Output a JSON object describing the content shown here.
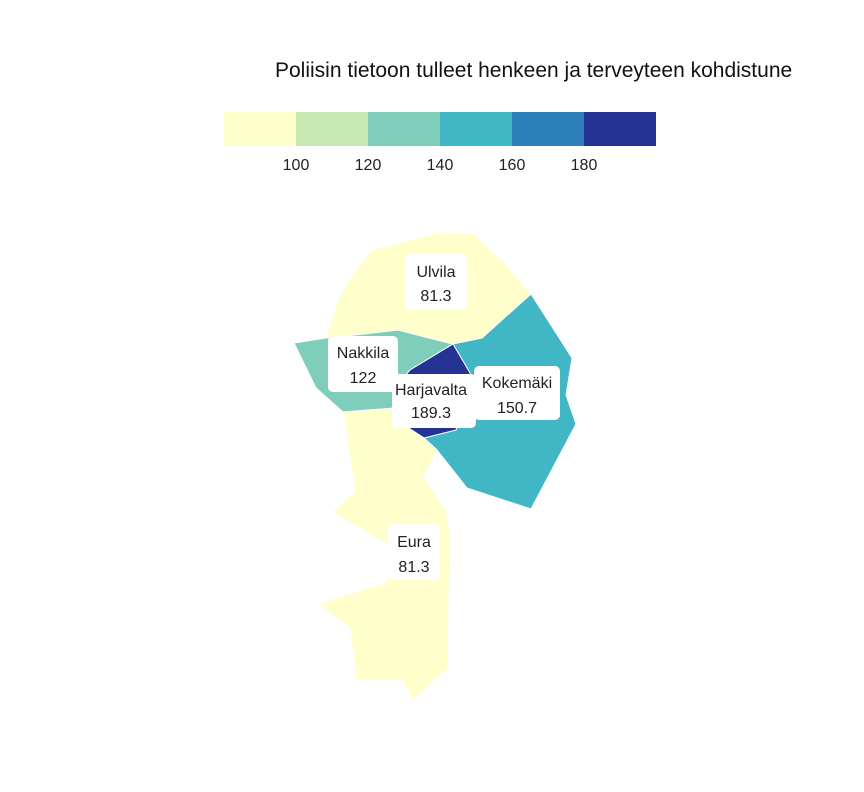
{
  "title": "Poliisin tietoon tulleet henkeen ja terveyteen kohdistune",
  "legend": {
    "ticks": [
      "100",
      "120",
      "140",
      "160",
      "180"
    ],
    "colors": [
      "#ffffcc",
      "#c7e9b4",
      "#7fcdbb",
      "#41b6c4",
      "#2c7fb8",
      "#253494"
    ]
  },
  "regions": [
    {
      "name": "Ulvila",
      "value": "81.3",
      "color": "#ffffcc"
    },
    {
      "name": "Nakkila",
      "value": "122",
      "color": "#7fcdbb"
    },
    {
      "name": "Harjavalta",
      "value": "189.3",
      "color": "#253494"
    },
    {
      "name": "Kokemäki",
      "value": "150.7",
      "color": "#41b6c4"
    },
    {
      "name": "Eura",
      "value": "81.3",
      "color": "#ffffcc"
    }
  ]
}
